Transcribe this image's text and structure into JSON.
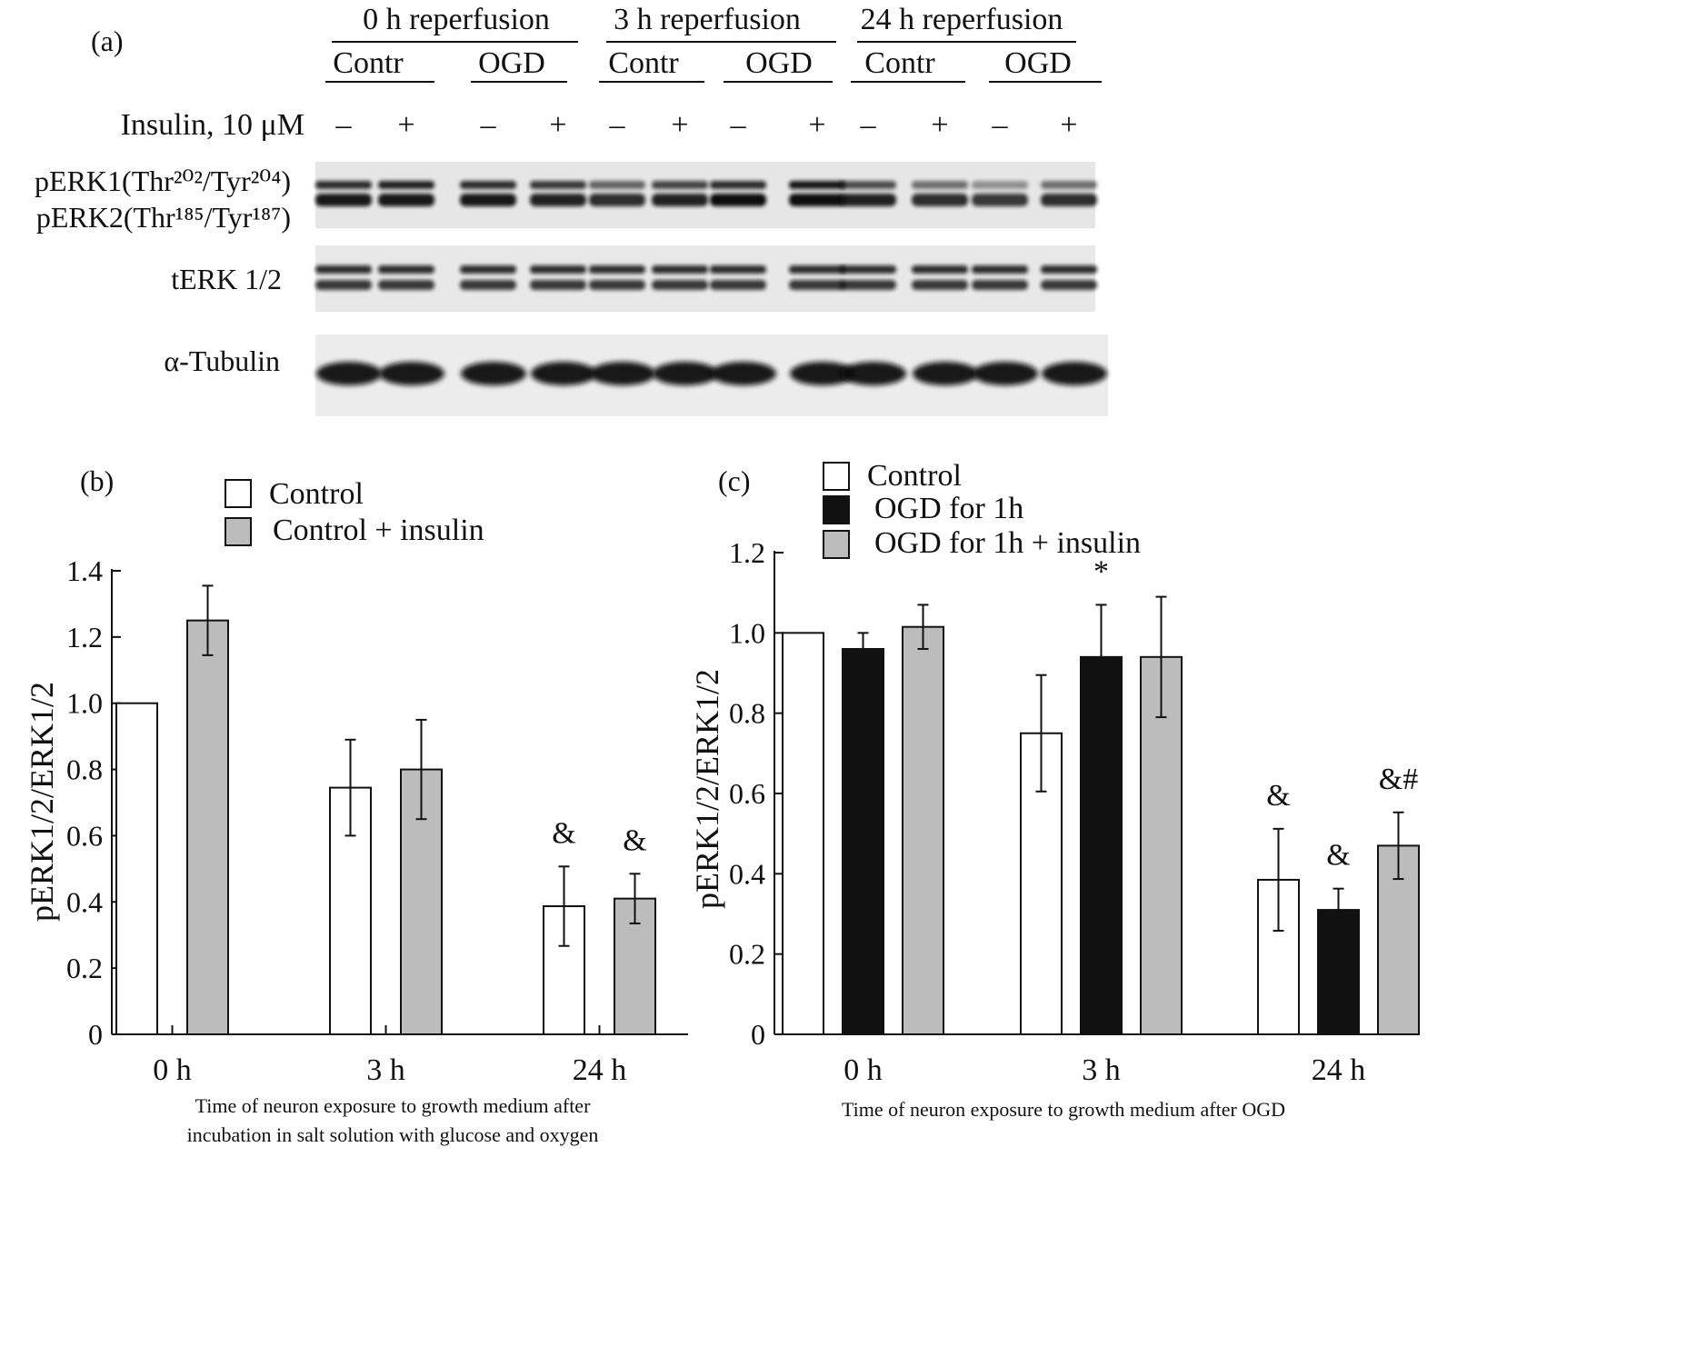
{
  "panel_a": {
    "label": "(a)",
    "reperfusion_groups": [
      "0 h reperfusion",
      "3 h reperfusion",
      "24 h reperfusion"
    ],
    "condition_labels": [
      "Contr",
      "OGD",
      "Contr",
      "OGD",
      "Contr",
      "OGD"
    ],
    "insulin_label": "Insulin, 10 μM",
    "insulin_signs": [
      "–",
      "+",
      "–",
      "+",
      "–",
      "+",
      "–",
      "+",
      "–",
      "+",
      "–",
      "+"
    ],
    "blots": [
      {
        "name": "perk",
        "labels": [
          "pERK1(Thr²⁰²/Tyr²⁰⁴)",
          "pERK2(Thr¹⁸⁵/Tyr¹⁸⁷)"
        ]
      },
      {
        "name": "terk",
        "labels": [
          "tERK 1/2"
        ]
      },
      {
        "name": "tubulin",
        "labels": [
          "α-Tubulin"
        ]
      }
    ]
  },
  "chart_data": [
    {
      "panel": "(b)",
      "type": "bar",
      "categories": [
        "0 h",
        "3 h",
        "24 h"
      ],
      "series": [
        {
          "name": "Control",
          "color": "#ffffff",
          "values": [
            1.0,
            0.745,
            0.387
          ],
          "errors": [
            0,
            0.145,
            0.12
          ]
        },
        {
          "name": "Control + insulin",
          "color": "#bcbcbc",
          "values": [
            1.25,
            0.8,
            0.41
          ],
          "errors": [
            0.105,
            0.15,
            0.075
          ]
        }
      ],
      "annotations": [
        {
          "category": 2,
          "series": 0,
          "text": "&"
        },
        {
          "category": 2,
          "series": 1,
          "text": "&"
        }
      ],
      "ylabel": "pERK1/2/ERK1/2",
      "xlabel": "Time of neuron exposure to growth medium after incubation in salt solution with glucose and oxygen",
      "xlabel_lines": [
        "Time of neuron exposure to growth medium after",
        "incubation in salt solution with glucose and oxygen"
      ],
      "ylim": [
        0,
        1.4
      ],
      "yticks": [
        "0",
        "0.2",
        "0.4",
        "0.6",
        "0.8",
        "1.0",
        "1.2",
        "1.4"
      ],
      "legend_position": "top"
    },
    {
      "panel": "(c)",
      "type": "bar",
      "categories": [
        "0 h",
        "3 h",
        "24 h"
      ],
      "series": [
        {
          "name": "Control",
          "color": "#ffffff",
          "values": [
            1.0,
            0.75,
            0.385
          ],
          "errors": [
            0,
            0.145,
            0.127
          ]
        },
        {
          "name": "OGD for 1h",
          "color": "#111111",
          "values": [
            0.96,
            0.94,
            0.31
          ],
          "errors": [
            0.04,
            0.13,
            0.053
          ]
        },
        {
          "name": "OGD for 1h + insulin",
          "color": "#bcbcbc",
          "values": [
            1.015,
            0.94,
            0.47
          ],
          "errors": [
            0.055,
            0.15,
            0.083
          ]
        }
      ],
      "annotations": [
        {
          "category": 1,
          "series": 1,
          "text": "*"
        },
        {
          "category": 2,
          "series": 0,
          "text": "&"
        },
        {
          "category": 2,
          "series": 1,
          "text": "&"
        },
        {
          "category": 2,
          "series": 2,
          "text": "&#"
        }
      ],
      "ylabel": "pERK1/2/ERK1/2",
      "xlabel": "Time of neuron exposure to growth medium after OGD",
      "xlabel_lines": [
        "Time of neuron exposure to growth medium after OGD"
      ],
      "ylim": [
        0,
        1.2
      ],
      "yticks": [
        "0",
        "0.2",
        "0.4",
        "0.6",
        "0.8",
        "1.0",
        "1.2"
      ],
      "legend_position": "top"
    }
  ]
}
